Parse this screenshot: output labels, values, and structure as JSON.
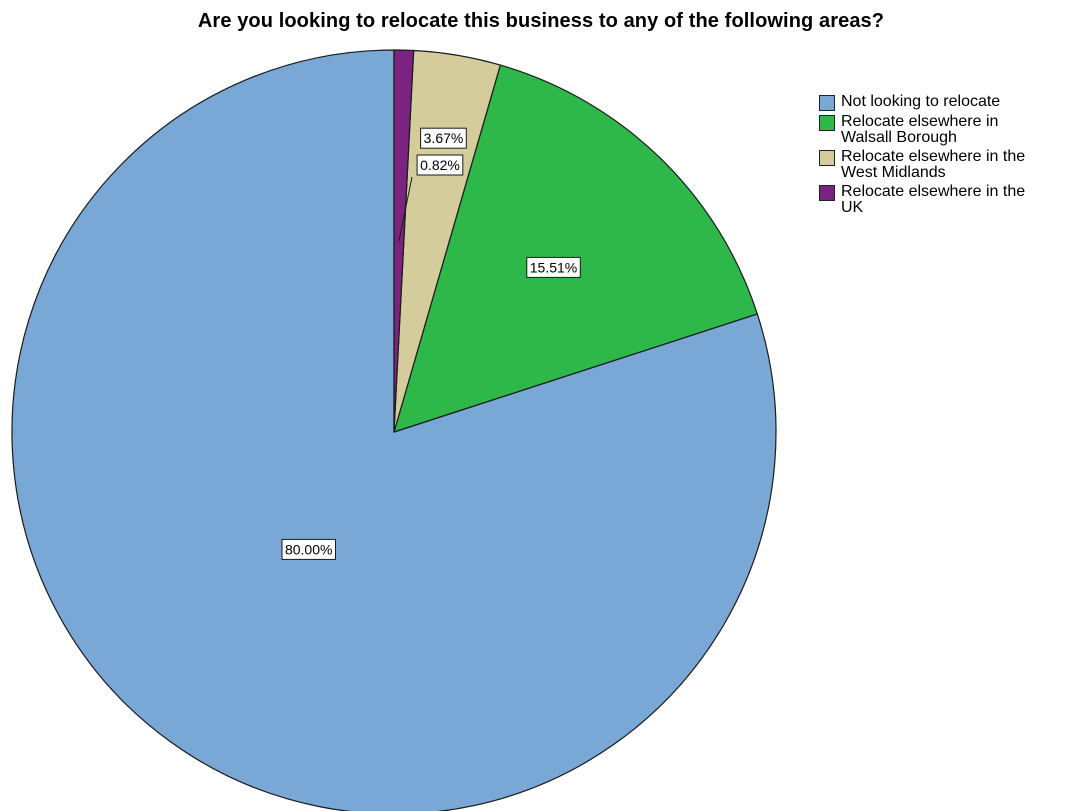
{
  "chart_data": {
    "type": "pie",
    "title": "Are you looking to relocate this business to any of the following areas?",
    "start_angle_deg": 0,
    "direction": "counterclockwise",
    "slices": [
      {
        "label": "Not looking to relocate",
        "legend_text": "Not looking to relocate",
        "value": 80.0,
        "display": "80.00%",
        "color": "#79a8d6"
      },
      {
        "label": "Relocate elsewhere in Walsall Borough",
        "legend_text": "Relocate elsewhere in\nWalsall Borough",
        "value": 15.51,
        "display": "15.51%",
        "color": "#2eb84a"
      },
      {
        "label": "Relocate elsewhere in the West Midlands",
        "legend_text": "Relocate elsewhere in the\nWest Midlands",
        "value": 3.67,
        "display": "3.67%",
        "color": "#d4cd9b"
      },
      {
        "label": "Relocate elsewhere in the UK",
        "legend_text": "Relocate elsewhere in the\nUK",
        "value": 0.82,
        "display": "0.82%",
        "color": "#7b2381"
      }
    ],
    "legend_position": "top-right"
  }
}
